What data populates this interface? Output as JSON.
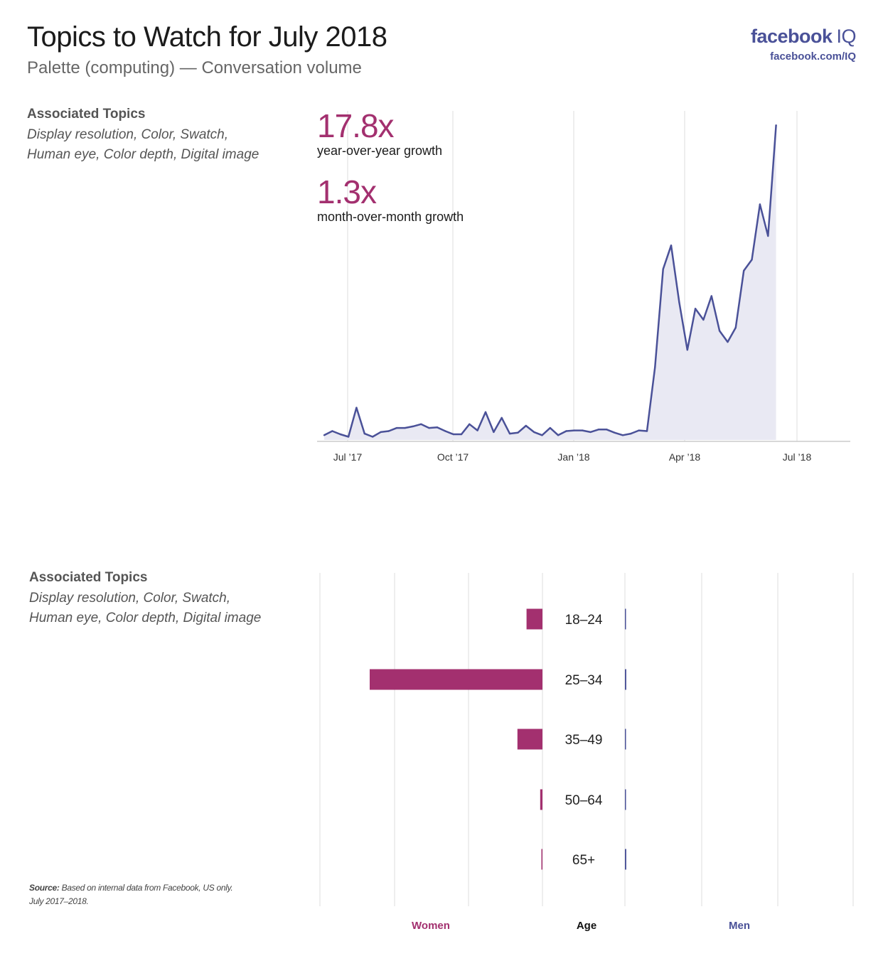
{
  "header": {
    "title": "Topics to Watch for July 2018",
    "subtitle": "Palette (computing) — Conversation volume",
    "brand_name": "facebook",
    "brand_suffix": "IQ",
    "brand_url": "facebook.com/IQ"
  },
  "associated_topics": {
    "title": "Associated Topics",
    "line1": "Display resolution, Color, Swatch,",
    "line2": "Human eye, Color depth, Digital image"
  },
  "stats": {
    "yoy_value": "17.8x",
    "yoy_label": "year-over-year growth",
    "mom_value": "1.3x",
    "mom_label": "month-over-month growth"
  },
  "source": {
    "label": "Source:",
    "text": "Based on internal data from Facebook, US only.",
    "period": "July 2017–2018."
  },
  "colors": {
    "line": "#4a5198",
    "area": "#e9e9f3",
    "women": "#a3306f",
    "men": "#4a5198",
    "grid": "#dddddd"
  },
  "chart_data": [
    {
      "type": "area",
      "x_ticks": [
        "Jul ’17",
        "Oct ’17",
        "Jan ’18",
        "Apr ’18",
        "Jul ’18"
      ],
      "ylim": [
        0,
        100
      ],
      "grid": true,
      "values": [
        1.5,
        2.8,
        1.8,
        1.0,
        10.2,
        2.0,
        1.0,
        2.5,
        2.8,
        3.8,
        3.8,
        4.3,
        5.0,
        3.8,
        4.0,
        2.8,
        1.8,
        1.8,
        5.0,
        3.0,
        8.8,
        2.5,
        7.0,
        2.0,
        2.3,
        4.5,
        2.5,
        1.5,
        3.8,
        1.5,
        2.8,
        3.0,
        3.0,
        2.5,
        3.3,
        3.3,
        2.3,
        1.5,
        2.0,
        3.0,
        2.8,
        23.0,
        54.0,
        61.5,
        43.5,
        28.5,
        41.5,
        38.0,
        45.5,
        34.5,
        31.0,
        35.5,
        53.5,
        57.0,
        74.5,
        64.5,
        99.5
      ]
    },
    {
      "type": "bar",
      "categories": [
        "18–24",
        "25–34",
        "35–49",
        "50–64",
        "65+"
      ],
      "series": [
        {
          "name": "Women",
          "values": [
            3.5,
            38.0,
            5.5,
            0.5,
            0.2
          ]
        },
        {
          "name": "Men",
          "values": [
            0.2,
            0.3,
            0.2,
            0.2,
            0.3
          ]
        }
      ],
      "xlabel_left": "Women",
      "xlabel_center": "Age",
      "xlabel_right": "Men",
      "xlim": [
        0,
        50
      ]
    }
  ]
}
